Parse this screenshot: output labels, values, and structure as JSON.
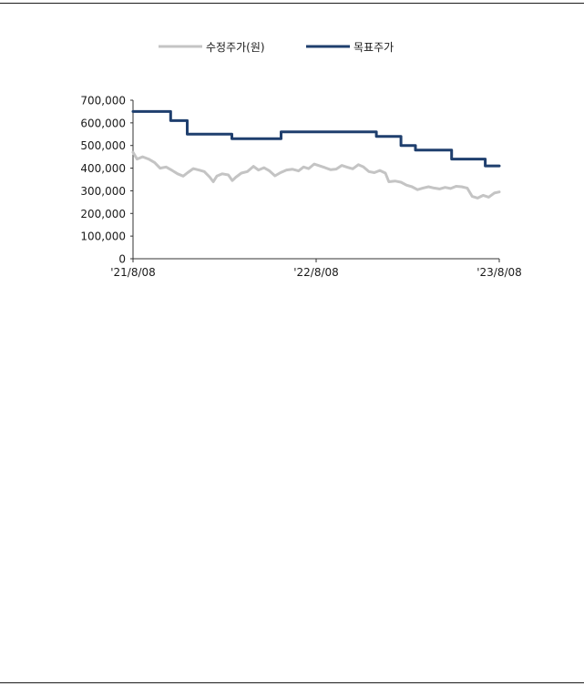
{
  "chart_data": {
    "type": "line",
    "x_axis": {
      "tick_labels": [
        "'21/8/08",
        "'22/8/08",
        "'23/8/08"
      ],
      "range": [
        "2021-08-08",
        "2023-08-08"
      ]
    },
    "y_axis": {
      "tick_labels": [
        "700,000",
        "600,000",
        "500,000",
        "400,000",
        "300,000",
        "200,000",
        "100,000",
        "0"
      ],
      "ticks": [
        700000,
        600000,
        500000,
        400000,
        300000,
        200000,
        100000,
        0
      ],
      "ylim": [
        0,
        700000
      ]
    },
    "legend_position": "top",
    "grid": false,
    "series": [
      {
        "name": "수정주가(원)",
        "color": "#c4c4c4",
        "points": [
          [
            "2021-08-08",
            470000
          ],
          [
            "2021-08-16",
            440000
          ],
          [
            "2021-08-27",
            450000
          ],
          [
            "2021-09-08",
            440000
          ],
          [
            "2021-09-20",
            425000
          ],
          [
            "2021-10-01",
            400000
          ],
          [
            "2021-10-13",
            405000
          ],
          [
            "2021-10-25",
            390000
          ],
          [
            "2021-11-05",
            375000
          ],
          [
            "2021-11-16",
            365000
          ],
          [
            "2021-11-25",
            380000
          ],
          [
            "2021-12-06",
            398000
          ],
          [
            "2021-12-17",
            392000
          ],
          [
            "2021-12-28",
            385000
          ],
          [
            "2022-01-08",
            360000
          ],
          [
            "2022-01-15",
            340000
          ],
          [
            "2022-01-22",
            365000
          ],
          [
            "2022-02-02",
            375000
          ],
          [
            "2022-02-14",
            370000
          ],
          [
            "2022-02-22",
            345000
          ],
          [
            "2022-03-01",
            360000
          ],
          [
            "2022-03-12",
            378000
          ],
          [
            "2022-03-24",
            385000
          ],
          [
            "2022-04-05",
            408000
          ],
          [
            "2022-04-15",
            392000
          ],
          [
            "2022-04-26",
            402000
          ],
          [
            "2022-05-07",
            388000
          ],
          [
            "2022-05-18",
            366000
          ],
          [
            "2022-05-29",
            380000
          ],
          [
            "2022-06-10",
            392000
          ],
          [
            "2022-06-22",
            395000
          ],
          [
            "2022-07-04",
            388000
          ],
          [
            "2022-07-14",
            405000
          ],
          [
            "2022-07-24",
            398000
          ],
          [
            "2022-08-04",
            418000
          ],
          [
            "2022-08-15",
            410000
          ],
          [
            "2022-08-26",
            402000
          ],
          [
            "2022-09-06",
            393000
          ],
          [
            "2022-09-17",
            396000
          ],
          [
            "2022-09-28",
            412000
          ],
          [
            "2022-10-09",
            404000
          ],
          [
            "2022-10-20",
            397000
          ],
          [
            "2022-10-31",
            415000
          ],
          [
            "2022-11-10",
            406000
          ],
          [
            "2022-11-21",
            385000
          ],
          [
            "2022-12-02",
            380000
          ],
          [
            "2022-12-13",
            390000
          ],
          [
            "2022-12-24",
            378000
          ],
          [
            "2022-12-31",
            340000
          ],
          [
            "2023-01-12",
            343000
          ],
          [
            "2023-01-24",
            338000
          ],
          [
            "2023-02-04",
            325000
          ],
          [
            "2023-02-15",
            318000
          ],
          [
            "2023-02-26",
            305000
          ],
          [
            "2023-03-09",
            312000
          ],
          [
            "2023-03-20",
            318000
          ],
          [
            "2023-03-31",
            312000
          ],
          [
            "2023-04-11",
            308000
          ],
          [
            "2023-04-22",
            315000
          ],
          [
            "2023-05-03",
            310000
          ],
          [
            "2023-05-14",
            320000
          ],
          [
            "2023-05-25",
            318000
          ],
          [
            "2023-06-05",
            312000
          ],
          [
            "2023-06-15",
            275000
          ],
          [
            "2023-06-26",
            268000
          ],
          [
            "2023-07-07",
            280000
          ],
          [
            "2023-07-18",
            272000
          ],
          [
            "2023-07-29",
            290000
          ],
          [
            "2023-08-08",
            295000
          ]
        ]
      },
      {
        "name": "목표주가",
        "color": "#1f3f6e",
        "step": true,
        "points": [
          [
            "2021-08-08",
            650000
          ],
          [
            "2021-10-22",
            610000
          ],
          [
            "2021-11-24",
            550000
          ],
          [
            "2022-02-21",
            530000
          ],
          [
            "2022-05-30",
            560000
          ],
          [
            "2022-12-06",
            540000
          ],
          [
            "2023-01-24",
            500000
          ],
          [
            "2023-02-22",
            480000
          ],
          [
            "2023-05-05",
            440000
          ],
          [
            "2023-07-11",
            410000
          ],
          [
            "2023-08-08",
            410000
          ]
        ]
      }
    ]
  }
}
